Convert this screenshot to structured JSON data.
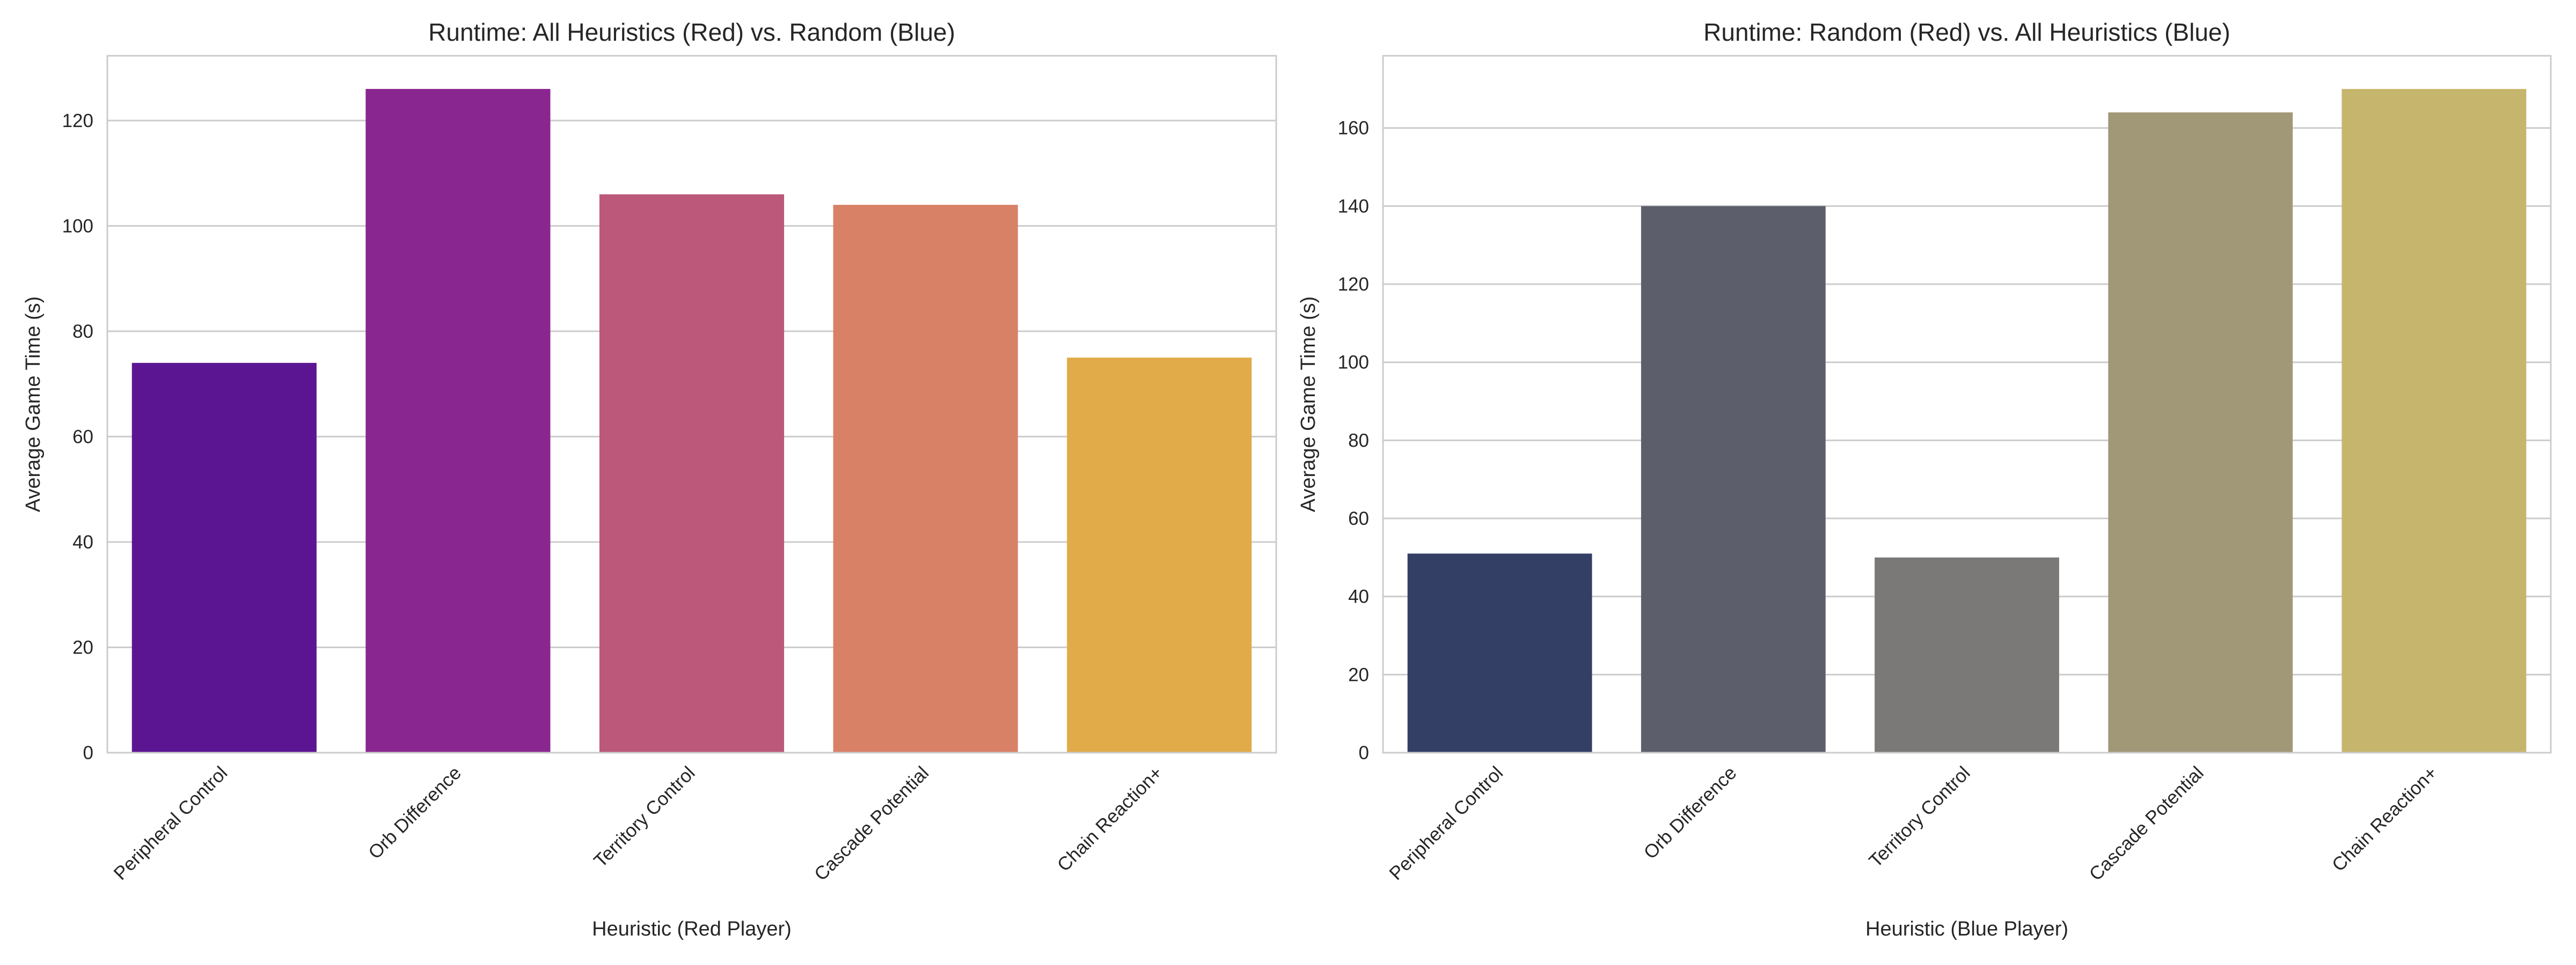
{
  "chart_data": [
    {
      "type": "bar",
      "title": "Runtime: All Heuristics (Red) vs. Random (Blue)",
      "xlabel": "Heuristic (Red Player)",
      "ylabel": "Average Game Time (s)",
      "categories": [
        "Peripheral Control",
        "Orb Difference",
        "Territory Control",
        "Cascade Potential",
        "Chain Reaction+"
      ],
      "values": [
        74,
        126,
        106,
        104,
        75
      ],
      "colors": [
        "#5c1592",
        "#8a2690",
        "#bc5879",
        "#d98166",
        "#e2ab49"
      ],
      "ylim": [
        0,
        132.3
      ],
      "yticks": [
        0,
        20,
        40,
        60,
        80,
        100,
        120
      ],
      "grid": true,
      "legend": "none"
    },
    {
      "type": "bar",
      "title": "Runtime: Random (Red) vs. All Heuristics (Blue)",
      "xlabel": "Heuristic (Blue Player)",
      "ylabel": "Average Game Time (s)",
      "categories": [
        "Peripheral Control",
        "Orb Difference",
        "Territory Control",
        "Cascade Potential",
        "Chain Reaction+"
      ],
      "values": [
        51,
        140,
        50,
        164,
        170
      ],
      "colors": [
        "#343f66",
        "#5c5f6b",
        "#7a7977",
        "#a19878",
        "#c6b66d"
      ],
      "ylim": [
        0,
        178.5
      ],
      "yticks": [
        0,
        20,
        40,
        60,
        80,
        100,
        120,
        140,
        160
      ],
      "grid": true,
      "legend": "none"
    }
  ]
}
